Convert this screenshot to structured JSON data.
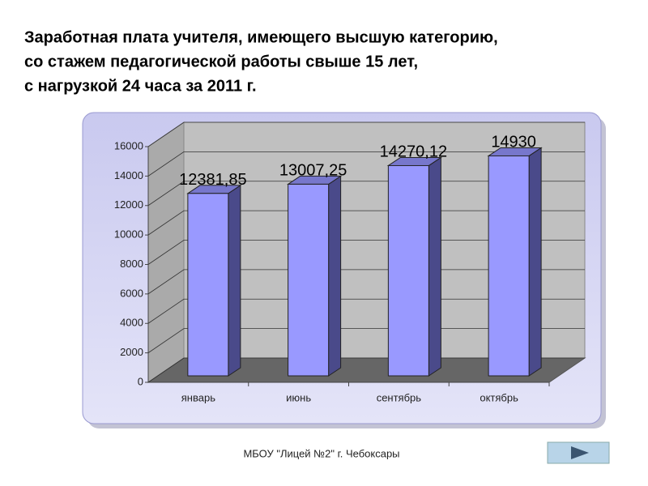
{
  "chart_data": {
    "type": "bar3d",
    "title": [
      "Заработная плата учителя, имеющего высшую категорию,",
      "со стажем педагогической работы свыше 15 лет,",
      "с нагрузкой 24 часа за 2011 г."
    ],
    "categories": [
      "январь",
      "июнь",
      "сентябрь",
      "октябрь"
    ],
    "values": [
      12381.85,
      13007.25,
      14270.12,
      14930
    ],
    "value_labels": [
      "12381,85",
      "13007,25",
      "14270,12",
      "14930"
    ],
    "color": "#9999ff",
    "ylim": [
      0,
      16000
    ],
    "yticks": [
      0,
      2000,
      4000,
      6000,
      8000,
      10000,
      12000,
      14000,
      16000
    ],
    "grid": true
  },
  "footer": "МБОУ \"Лицей №2\" г. Чебоксары"
}
